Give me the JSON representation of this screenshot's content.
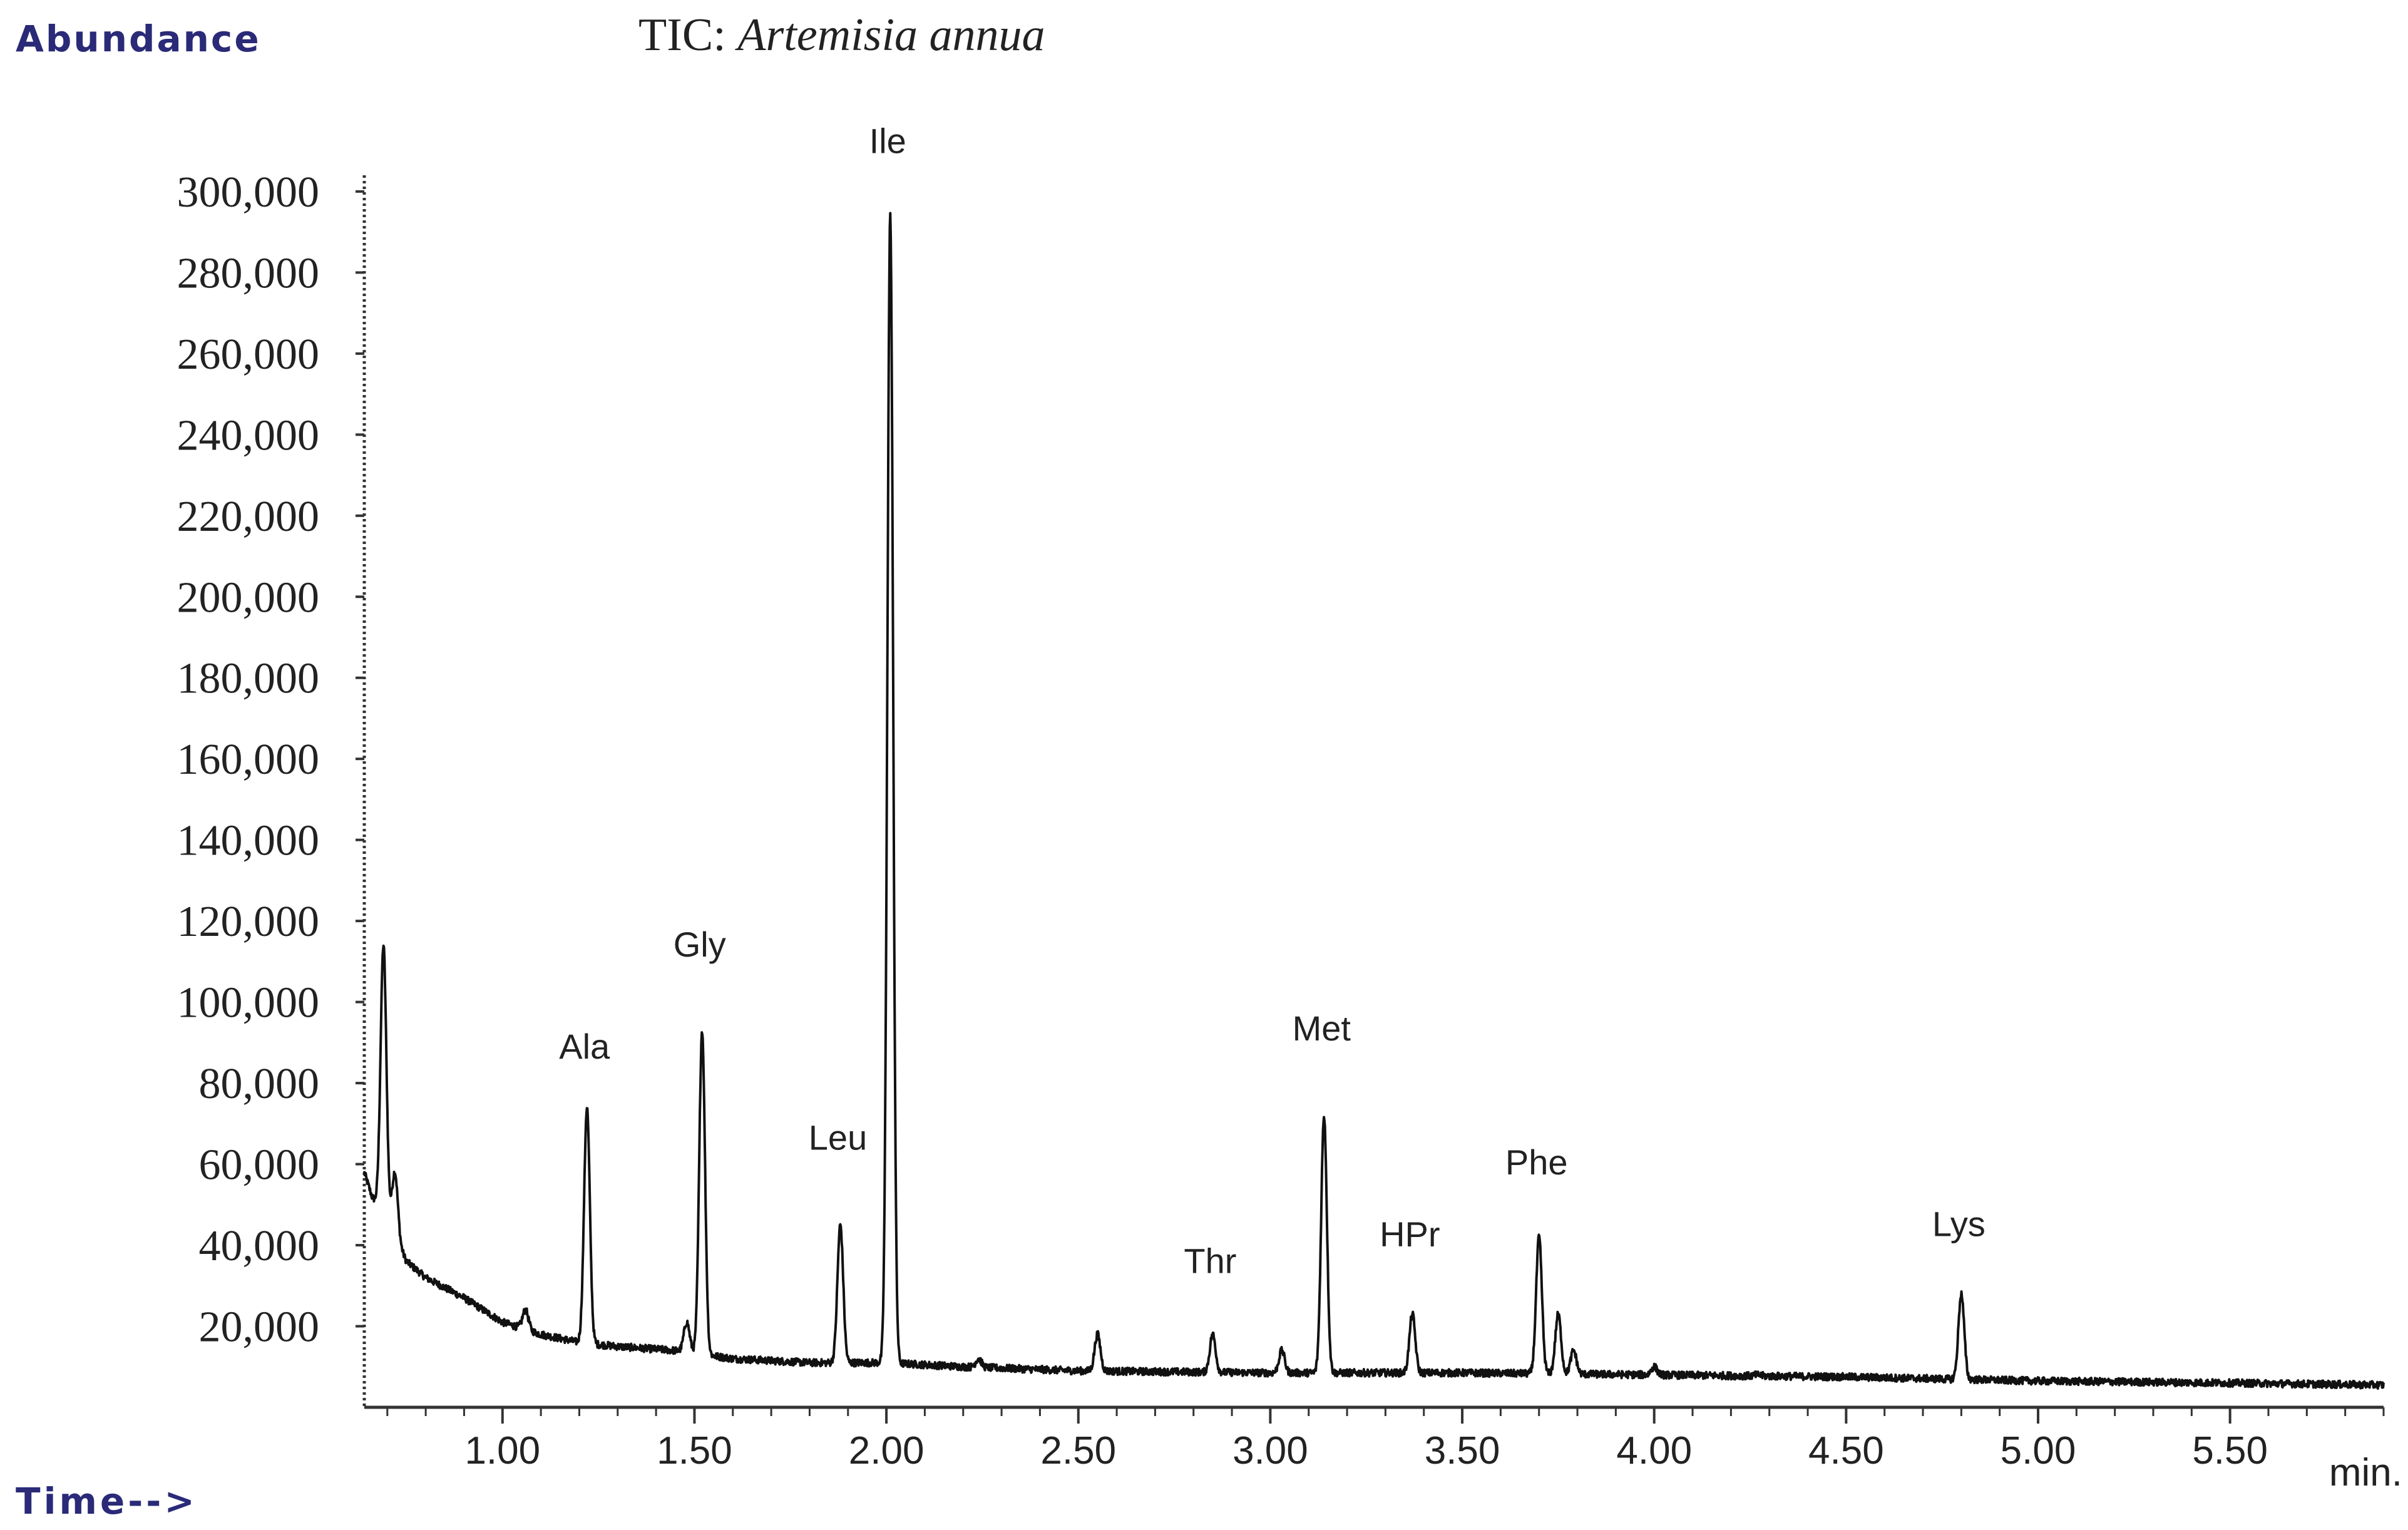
{
  "header": {
    "ylabel_corner": "Abundance",
    "xlabel_corner": "Time-->",
    "title_prefix": "TIC: ",
    "title_species": "Artemisia annua"
  },
  "colors": {
    "trace": "#111111",
    "axis": "#333333",
    "corner_label": "#2a2a78",
    "text": "#222222"
  },
  "chart_data": {
    "type": "line",
    "title": "TIC: Artemisia annua",
    "ylabel": "Abundance",
    "xlabel": "Time-->",
    "x_unit": "min.",
    "xlim": [
      0.64,
      5.9
    ],
    "ylim": [
      0,
      304000
    ],
    "x_ticks": [
      1.0,
      1.5,
      2.0,
      2.5,
      3.0,
      3.5,
      4.0,
      4.5,
      5.0,
      5.5
    ],
    "x_tick_labels": [
      "1.00",
      "1.50",
      "2.00",
      "2.50",
      "3.00",
      "3.50",
      "4.00",
      "4.50",
      "5.00",
      "5.50"
    ],
    "y_ticks": [
      20000,
      40000,
      60000,
      80000,
      100000,
      120000,
      140000,
      160000,
      180000,
      200000,
      220000,
      240000,
      260000,
      280000,
      300000
    ],
    "y_tick_labels": [
      "20,000",
      "40,000",
      "60,000",
      "80,000",
      "100,000",
      "120,000",
      "140,000",
      "160,000",
      "180,000",
      "200,000",
      "220,000",
      "240,000",
      "260,000",
      "280,000",
      "300,000"
    ],
    "grid": false,
    "peaks": [
      {
        "label": "Ala",
        "x": 1.22,
        "y": 74000
      },
      {
        "label": "Gly",
        "x": 1.52,
        "y": 93000
      },
      {
        "label": "Leu",
        "x": 1.88,
        "y": 45000
      },
      {
        "label": "Ile",
        "x": 2.01,
        "y": 294000
      },
      {
        "label": "Thr",
        "x": 2.85,
        "y": 18000
      },
      {
        "label": "Met",
        "x": 3.14,
        "y": 72000
      },
      {
        "label": "HPr",
        "x": 3.37,
        "y": 23000
      },
      {
        "label": "Phe",
        "x": 3.7,
        "y": 42000
      },
      {
        "label": "Lys",
        "x": 4.8,
        "y": 28000
      }
    ],
    "minor_peaks": [
      {
        "x": 0.69,
        "y": 114000
      },
      {
        "x": 0.72,
        "y": 58000
      },
      {
        "x": 1.06,
        "y": 24000
      },
      {
        "x": 1.48,
        "y": 21000
      },
      {
        "x": 2.24,
        "y": 12000
      },
      {
        "x": 2.55,
        "y": 18000
      },
      {
        "x": 3.03,
        "y": 14000
      },
      {
        "x": 3.75,
        "y": 23000
      },
      {
        "x": 3.79,
        "y": 14000
      },
      {
        "x": 4.0,
        "y": 10000
      },
      {
        "x": 4.27,
        "y": 8000
      }
    ],
    "baseline": [
      {
        "x": 0.64,
        "y": 58000
      },
      {
        "x": 0.66,
        "y": 52000
      },
      {
        "x": 0.7,
        "y": 46000
      },
      {
        "x": 0.75,
        "y": 36000
      },
      {
        "x": 0.8,
        "y": 32000
      },
      {
        "x": 0.9,
        "y": 27000
      },
      {
        "x": 1.0,
        "y": 21000
      },
      {
        "x": 1.1,
        "y": 18000
      },
      {
        "x": 1.2,
        "y": 16000
      },
      {
        "x": 1.3,
        "y": 15000
      },
      {
        "x": 1.45,
        "y": 14000
      },
      {
        "x": 1.6,
        "y": 12000
      },
      {
        "x": 1.8,
        "y": 11000
      },
      {
        "x": 2.0,
        "y": 11000
      },
      {
        "x": 2.2,
        "y": 10000
      },
      {
        "x": 2.5,
        "y": 9000
      },
      {
        "x": 3.0,
        "y": 8500
      },
      {
        "x": 3.5,
        "y": 8500
      },
      {
        "x": 4.0,
        "y": 8000
      },
      {
        "x": 4.5,
        "y": 7500
      },
      {
        "x": 5.0,
        "y": 6500
      },
      {
        "x": 5.5,
        "y": 6000
      },
      {
        "x": 5.9,
        "y": 5500
      }
    ]
  }
}
